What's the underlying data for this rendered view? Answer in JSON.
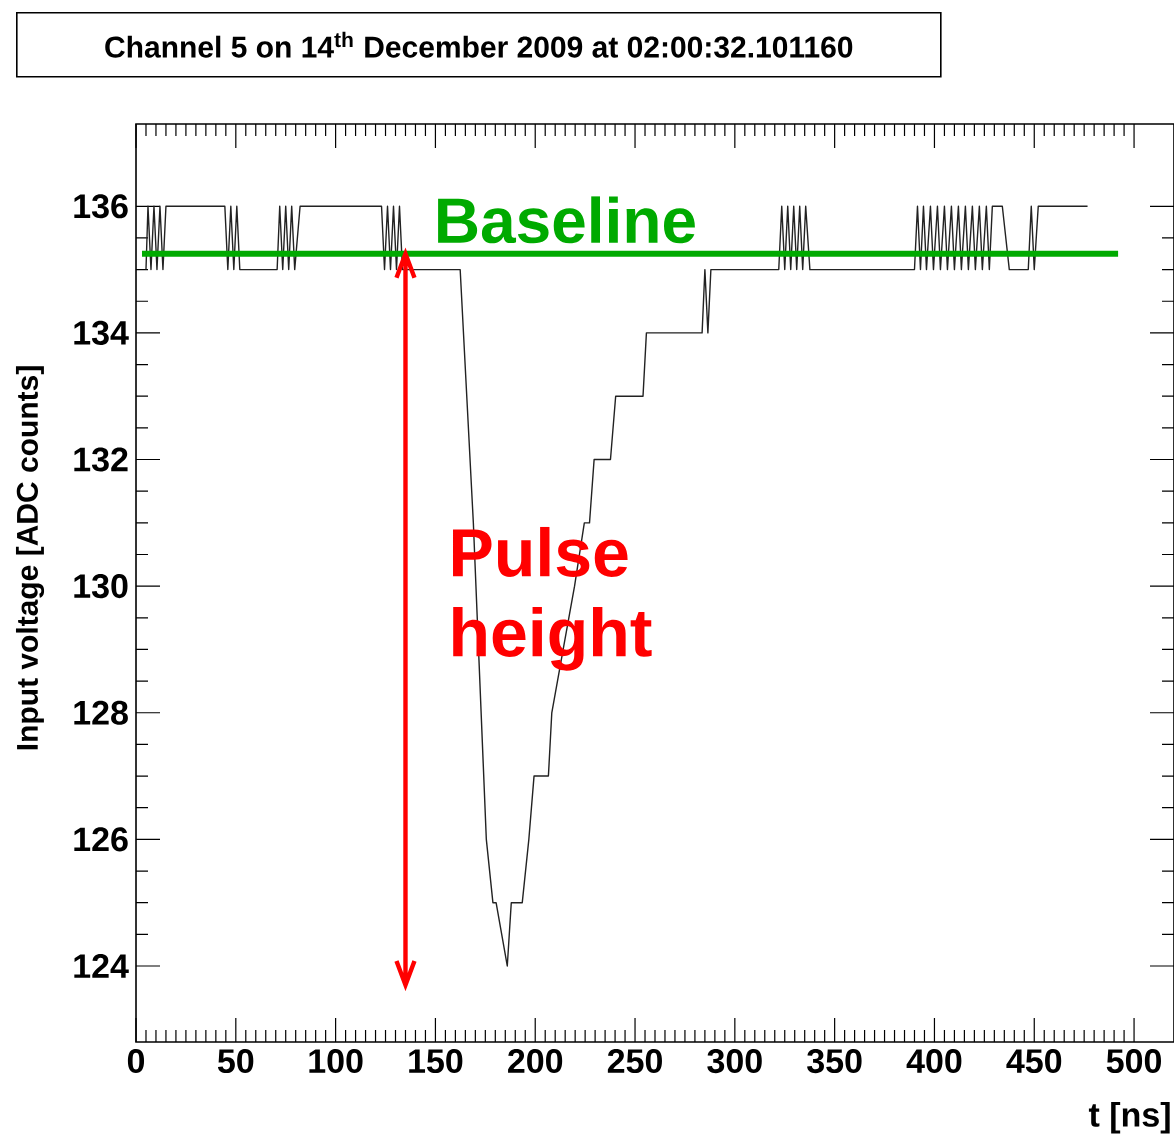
{
  "chart_data": {
    "type": "line",
    "title": "Channel 5 on 14$^{th}$ December 2009 at 02:00:32.101160",
    "xlabel": "t [ns]",
    "ylabel": "Input voltage [ADC counts]",
    "x": [
      5,
      6,
      7.5,
      9,
      10.5,
      12,
      13.5,
      15,
      44.5,
      46,
      47.5,
      49,
      50.5,
      52,
      54.4,
      70.7,
      72,
      73.5,
      75,
      76.5,
      78,
      79.5,
      82.2,
      123,
      124.5,
      126,
      127.5,
      129,
      130.5,
      132,
      133.5,
      136.2,
      162.4,
      169,
      175.5,
      178.8,
      180.4,
      186,
      188,
      193.5,
      196.8,
      199.4,
      206.6,
      208.3,
      214,
      219.7,
      224.6,
      227.2,
      229.5,
      237.7,
      240.3,
      254,
      255.7,
      283.6,
      285,
      286.5,
      288,
      322,
      323.5,
      325,
      326.5,
      328,
      329.5,
      331,
      332.5,
      334,
      335.5,
      337.6,
      390,
      391.5,
      393,
      394.5,
      396,
      398,
      399.5,
      401.5,
      403,
      405,
      406.5,
      408.5,
      410,
      412,
      413.5,
      415.5,
      417,
      419,
      420.5,
      422.5,
      424,
      426,
      427.5,
      429,
      434,
      437.5,
      447,
      448.5,
      450,
      452,
      476.7
    ],
    "series": [
      {
        "color": "#222222",
        "values": [
          135,
          136,
          135,
          136,
          135,
          136,
          135,
          136,
          136,
          135,
          136,
          135,
          136,
          135,
          135,
          135,
          136,
          135,
          136,
          135,
          136,
          135,
          136,
          136,
          135,
          136,
          135,
          136,
          135,
          136,
          135,
          135,
          135,
          131,
          126,
          125,
          125,
          124,
          125,
          125,
          126,
          127,
          127,
          128,
          129,
          130,
          131,
          131,
          132,
          132,
          133,
          133,
          134,
          134,
          135,
          134,
          135,
          135,
          136,
          135,
          136,
          135,
          136,
          135,
          136,
          135,
          136,
          135,
          135,
          136,
          135,
          136,
          135,
          136,
          135,
          136,
          135,
          136,
          135,
          136,
          135,
          136,
          135,
          136,
          135,
          136,
          135,
          136,
          135,
          136,
          135,
          136,
          136,
          135,
          135,
          136,
          135,
          136,
          136
        ]
      }
    ],
    "xlim": [
      0,
      520
    ],
    "ylim": [
      122.8,
      137.3
    ],
    "xticks": [
      0,
      50,
      100,
      150,
      200,
      250,
      300,
      350,
      400,
      450,
      500
    ],
    "yticks": [
      124,
      126,
      128,
      130,
      132,
      134,
      136
    ],
    "ref_lines": [
      {
        "axis": "y",
        "value": 135.25,
        "label": "Baseline",
        "color": "#00aa00"
      }
    ],
    "annotations": [
      "Pulse height"
    ]
  }
}
